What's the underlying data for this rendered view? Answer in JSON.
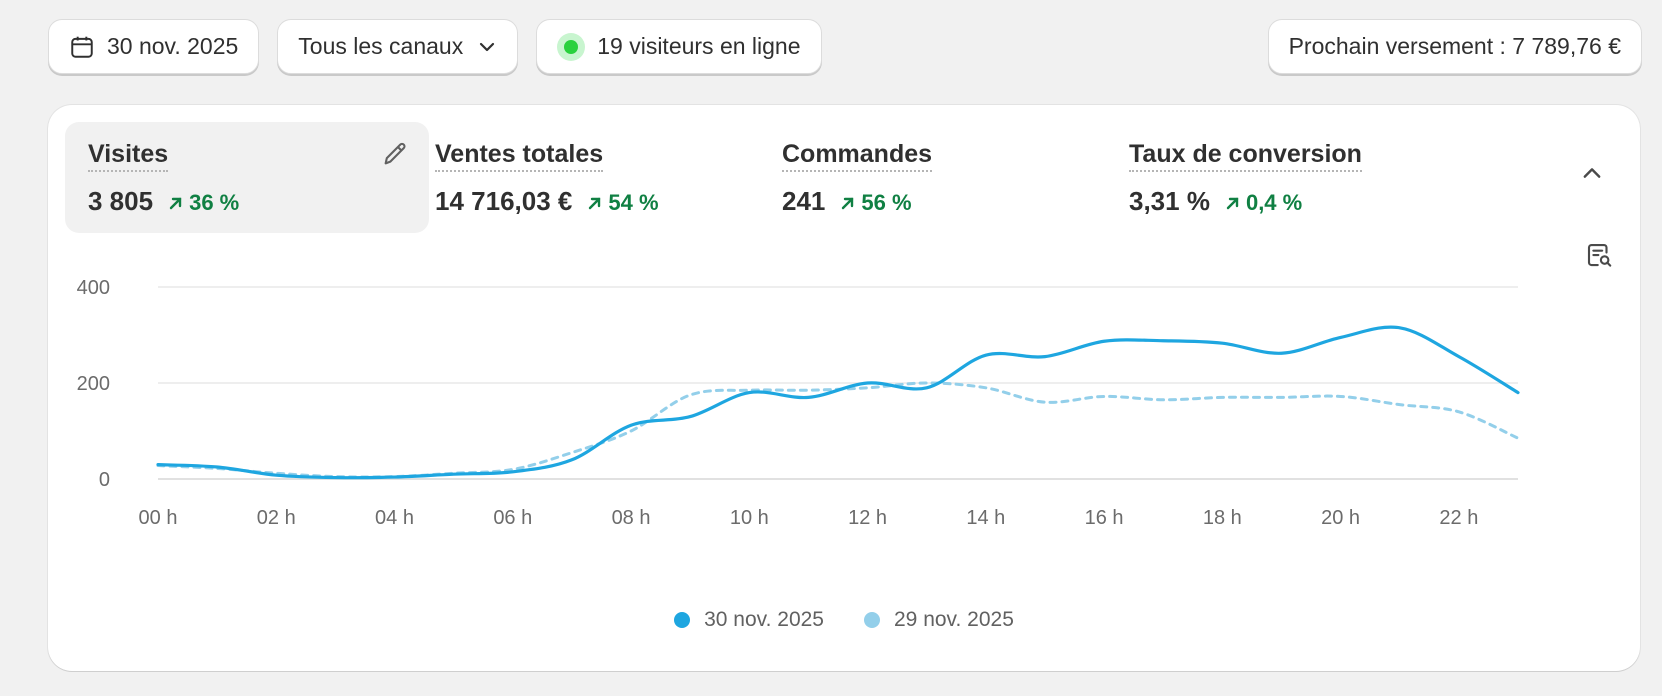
{
  "toolbar": {
    "date_label": "30 nov. 2025",
    "channels_label": "Tous les canaux",
    "visitors_label": "19 visiteurs en ligne",
    "payout_label": "Prochain versement : 7 789,76 €"
  },
  "metrics": [
    {
      "label": "Visites",
      "value": "3 805",
      "change": "36 %"
    },
    {
      "label": "Ventes totales",
      "value": "14 716,03 €",
      "change": "54 %"
    },
    {
      "label": "Commandes",
      "value": "241",
      "change": "56 %"
    },
    {
      "label": "Taux de conversion",
      "value": "3,31 %",
      "change": "0,4 %"
    }
  ],
  "colors": {
    "current": "#1ea6e0",
    "previous": "#93cfea",
    "positive": "#108043"
  },
  "icons": {
    "date": "calendar-icon",
    "channels": "chevron-down-icon",
    "edit": "pencil-icon",
    "collapse": "chevron-up-icon",
    "report": "report-search-icon"
  },
  "chart_data": {
    "type": "line",
    "x": [
      "00 h",
      "01 h",
      "02 h",
      "03 h",
      "04 h",
      "05 h",
      "06 h",
      "07 h",
      "08 h",
      "09 h",
      "10 h",
      "11 h",
      "12 h",
      "13 h",
      "14 h",
      "15 h",
      "16 h",
      "17 h",
      "18 h",
      "19 h",
      "20 h",
      "21 h",
      "22 h",
      "23 h"
    ],
    "x_ticks": [
      "00 h",
      "02 h",
      "04 h",
      "06 h",
      "08 h",
      "10 h",
      "12 h",
      "14 h",
      "16 h",
      "18 h",
      "20 h",
      "22 h"
    ],
    "y_ticks": [
      "0",
      "200",
      "400"
    ],
    "ylim": [
      0,
      400
    ],
    "series": [
      {
        "name": "30 nov. 2025",
        "style": "solid",
        "values": [
          30,
          25,
          8,
          3,
          4,
          10,
          15,
          40,
          112,
          130,
          180,
          170,
          200,
          190,
          258,
          255,
          287,
          288,
          283,
          262,
          295,
          315,
          255,
          180
        ]
      },
      {
        "name": "29 nov. 2025",
        "style": "dashed",
        "values": [
          28,
          22,
          12,
          5,
          5,
          12,
          20,
          55,
          100,
          175,
          185,
          185,
          190,
          200,
          190,
          160,
          172,
          165,
          170,
          170,
          172,
          155,
          140,
          85
        ]
      }
    ],
    "legend_position": "bottom-center",
    "grid": true
  }
}
